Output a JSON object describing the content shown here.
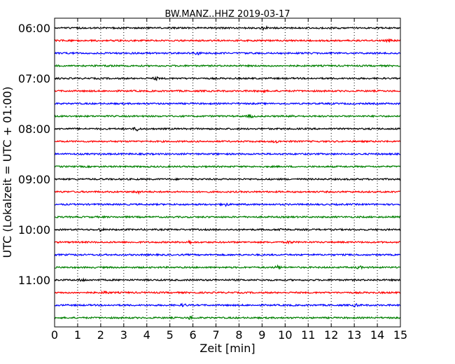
{
  "chart_data": {
    "type": "line",
    "title": "BW.MANZ..HHZ 2019-03-17",
    "xlabel": "Zeit  [min]",
    "ylabel": "UTC (Lokalzeit = UTC + 01:00)",
    "xlim": [
      0,
      15
    ],
    "x_ticks": [
      "0",
      "1",
      "2",
      "3",
      "4",
      "5",
      "6",
      "7",
      "8",
      "9",
      "10",
      "11",
      "12",
      "13",
      "14",
      "15"
    ],
    "y_tick_labels": [
      "06:00",
      "07:00",
      "08:00",
      "09:00",
      "10:00",
      "11:00"
    ],
    "y_tick_label_rows": [
      0,
      4,
      8,
      12,
      16,
      20
    ],
    "grid": "dotted vertical at each minute",
    "trace_colors": [
      "#000000",
      "#ff0000",
      "#0000ff",
      "#008000"
    ],
    "num_traces": 24,
    "trace_interval_minutes": 15,
    "first_trace_time": "06:00",
    "bursts": [
      {
        "row": 0,
        "minute": 9.1,
        "amplitude": 1.8
      },
      {
        "row": 1,
        "minute": 14.5,
        "amplitude": 1.7
      },
      {
        "row": 2,
        "minute": 6.2,
        "amplitude": 1.4
      },
      {
        "row": 4,
        "minute": 4.4,
        "amplitude": 1.6
      },
      {
        "row": 5,
        "minute": 9.0,
        "amplitude": 1.5
      },
      {
        "row": 7,
        "minute": 8.5,
        "amplitude": 1.7
      },
      {
        "row": 7,
        "minute": 10.3,
        "amplitude": 1.5
      },
      {
        "row": 8,
        "minute": 3.6,
        "amplitude": 2.6
      },
      {
        "row": 9,
        "minute": 9.6,
        "amplitude": 1.4
      },
      {
        "row": 13,
        "minute": 3.6,
        "amplitude": 1.8
      },
      {
        "row": 14,
        "minute": 7.4,
        "amplitude": 1.8
      },
      {
        "row": 16,
        "minute": 2.0,
        "amplitude": 1.5
      },
      {
        "row": 16,
        "minute": 9.8,
        "amplitude": 1.4
      },
      {
        "row": 17,
        "minute": 5.8,
        "amplitude": 1.8
      },
      {
        "row": 17,
        "minute": 10.2,
        "amplitude": 1.5
      },
      {
        "row": 19,
        "minute": 9.7,
        "amplitude": 2.0
      },
      {
        "row": 19,
        "minute": 13.2,
        "amplitude": 1.6
      },
      {
        "row": 20,
        "minute": 1.2,
        "amplitude": 1.6
      },
      {
        "row": 21,
        "minute": 2.2,
        "amplitude": 1.5
      },
      {
        "row": 22,
        "minute": 5.6,
        "amplitude": 1.5
      },
      {
        "row": 22,
        "minute": 13.1,
        "amplitude": 1.4
      },
      {
        "row": 23,
        "minute": 5.9,
        "amplitude": 1.6
      }
    ]
  }
}
